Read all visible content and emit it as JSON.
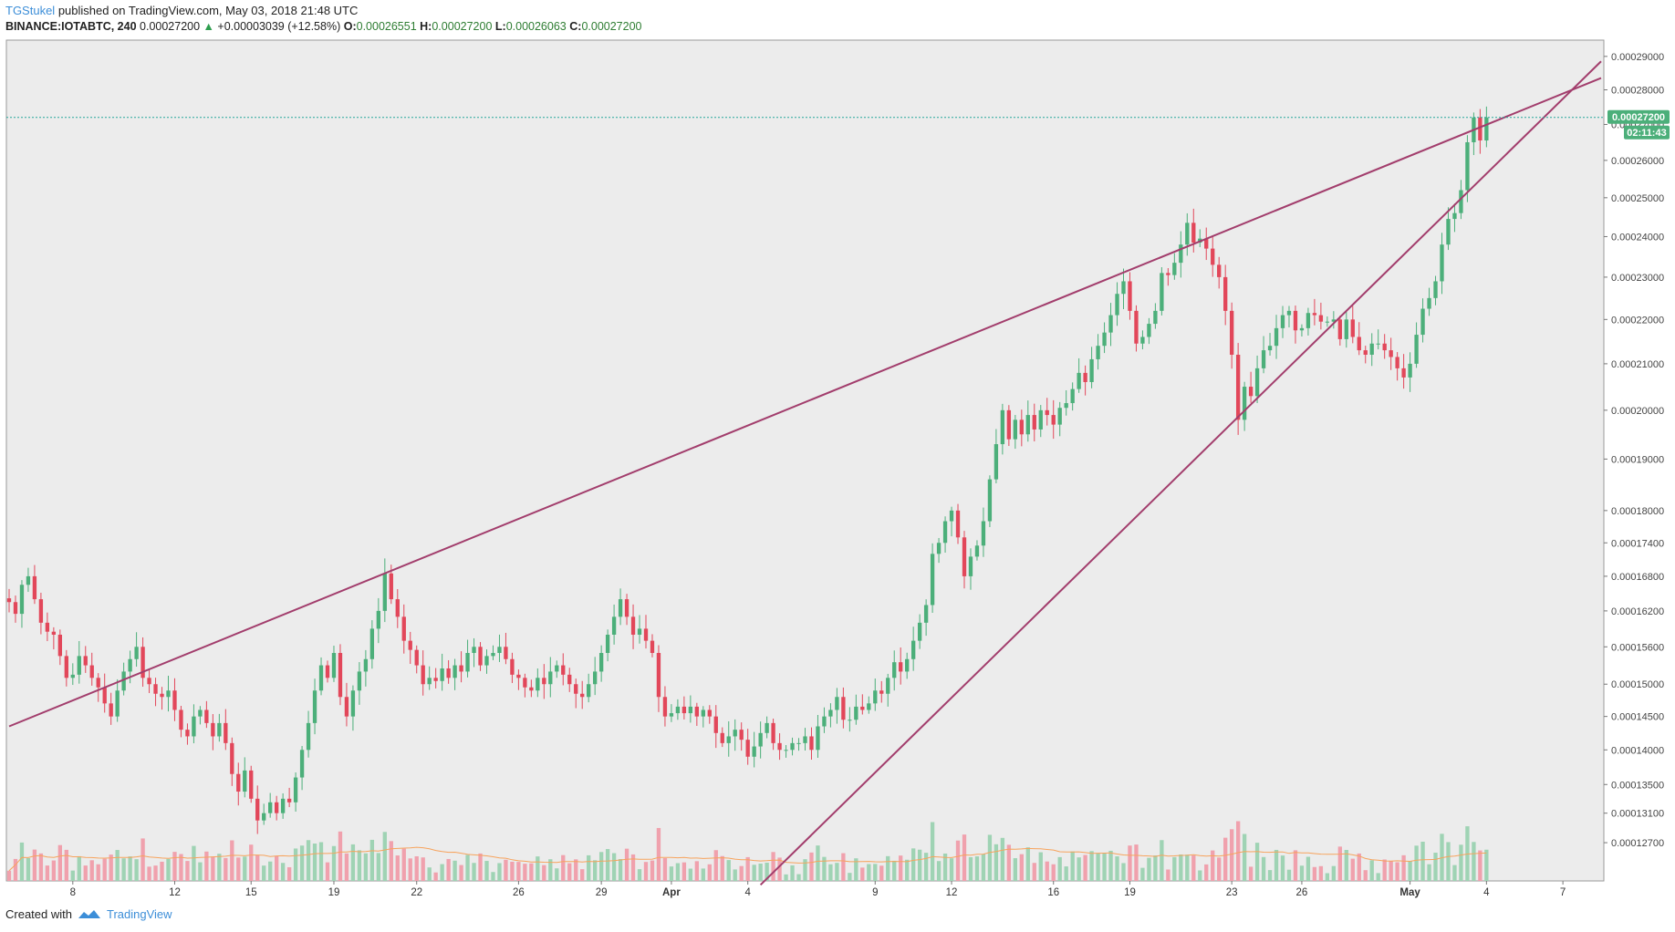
{
  "header": {
    "author": "TGStukel",
    "published": "published on TradingView.com, May 03, 2018 21:48 UTC"
  },
  "ohlc": {
    "symbol": "BINANCE:IOTABTC, 240",
    "last": "0.00027200",
    "change_arrow": "▲",
    "change": "+0.00003039 (+12.58%)",
    "o_label": "O:",
    "o": "0.00026551",
    "h_label": "H:",
    "h": "0.00027200",
    "l_label": "L:",
    "l": "0.00026063",
    "c_label": "C:",
    "c": "0.00027200"
  },
  "price_label": {
    "value": "0.00027200",
    "countdown": "02:11:43"
  },
  "footer": {
    "created_with": "Created with",
    "brand": "TradingView"
  },
  "colors": {
    "up": "#4caf7a",
    "down": "#e2475a",
    "trendline": "#a23d6c",
    "volume_up": "#9fd3b4",
    "volume_down": "#f0a1ad",
    "volume_ma": "#f7a35c",
    "price_line": "#26a69a",
    "background": "#ececec"
  },
  "chart_data": {
    "type": "candlestick",
    "y_ticks": [
      "0.00029000",
      "0.00028000",
      "0.00027000",
      "0.00026000",
      "0.00025000",
      "0.00024000",
      "0.00023000",
      "0.00022000",
      "0.00021000",
      "0.00020000",
      "0.00019000",
      "0.00018000",
      "0.00017400",
      "0.00016800",
      "0.00016200",
      "0.00015600",
      "0.00015000",
      "0.00014500",
      "0.00014000",
      "0.00013500",
      "0.00013100",
      "0.00012700"
    ],
    "x_ticks": [
      {
        "label": "8",
        "bold": false
      },
      {
        "label": "12",
        "bold": false
      },
      {
        "label": "15",
        "bold": false
      },
      {
        "label": "19",
        "bold": false
      },
      {
        "label": "22",
        "bold": false
      },
      {
        "label": "26",
        "bold": false
      },
      {
        "label": "29",
        "bold": false
      },
      {
        "label": "Apr",
        "bold": true
      },
      {
        "label": "4",
        "bold": false
      },
      {
        "label": "9",
        "bold": false
      },
      {
        "label": "12",
        "bold": false
      },
      {
        "label": "16",
        "bold": false
      },
      {
        "label": "19",
        "bold": false
      },
      {
        "label": "23",
        "bold": false
      },
      {
        "label": "26",
        "bold": false
      },
      {
        "label": "May",
        "bold": true
      },
      {
        "label": "4",
        "bold": false
      },
      {
        "label": "7",
        "bold": false
      }
    ],
    "x_tick_index": [
      10,
      26,
      38,
      51,
      64,
      80,
      93,
      104,
      116,
      136,
      148,
      164,
      176,
      192,
      203,
      220,
      232,
      244
    ],
    "x_range": [
      0,
      250
    ],
    "log_scale": true,
    "ylim": [
      0.000122,
      0.000295
    ],
    "trendlines": [
      {
        "name": "upper",
        "from": {
          "i": 0,
          "p": 0.0001435
        },
        "to": {
          "i": 250,
          "p": 0.0002835
        }
      },
      {
        "name": "lower",
        "from": {
          "i": 118,
          "p": 0.0001215
        },
        "to": {
          "i": 250,
          "p": 0.0002885
        }
      }
    ],
    "closes": [
      0.0001635,
      0.0001615,
      0.0001665,
      0.000168,
      0.000164,
      0.00016,
      0.0001585,
      0.000158,
      0.0001545,
      0.000151,
      0.0001515,
      0.0001545,
      0.000153,
      0.000151,
      0.0001495,
      0.000147,
      0.000145,
      0.000149,
      0.000152,
      0.000154,
      0.000156,
      0.000151,
      0.00015,
      0.0001485,
      0.000148,
      0.000149,
      0.000146,
      0.000143,
      0.000142,
      0.000145,
      0.000146,
      0.000144,
      0.000142,
      0.000144,
      0.000141,
      0.0001365,
      0.000134,
      0.000137,
      0.000133,
      0.00013,
      0.000131,
      0.0001325,
      0.000131,
      0.000133,
      0.0001325,
      0.000136,
      0.00014,
      0.000144,
      0.000149,
      0.000153,
      0.000151,
      0.000155,
      0.000148,
      0.000145,
      0.000149,
      0.000152,
      0.000154,
      0.000159,
      0.000162,
      0.0001685,
      0.000164,
      0.000161,
      0.000157,
      0.0001555,
      0.000153,
      0.00015,
      0.000151,
      0.0001505,
      0.0001525,
      0.000151,
      0.000153,
      0.000152,
      0.000155,
      0.000156,
      0.000153,
      0.0001545,
      0.000155,
      0.000156,
      0.000154,
      0.0001515,
      0.000151,
      0.0001495,
      0.000149,
      0.000151,
      0.00015,
      0.000152,
      0.000153,
      0.0001515,
      0.00015,
      0.0001485,
      0.000148,
      0.00015,
      0.000152,
      0.000155,
      0.000158,
      0.000161,
      0.000164,
      0.000161,
      0.000158,
      0.000159,
      0.000157,
      0.000155,
      0.000148,
      0.000145,
      0.0001455,
      0.0001465,
      0.0001455,
      0.0001465,
      0.000145,
      0.000146,
      0.000145,
      0.0001425,
      0.000141,
      0.000142,
      0.000143,
      0.0001415,
      0.000139,
      0.0001405,
      0.0001425,
      0.000144,
      0.000141,
      0.00014,
      0.00014,
      0.000141,
      0.000141,
      0.000142,
      0.00014,
      0.0001435,
      0.000145,
      0.000146,
      0.000148,
      0.0001445,
      0.0001445,
      0.0001465,
      0.000146,
      0.000147,
      0.000149,
      0.0001485,
      0.000151,
      0.0001535,
      0.000152,
      0.000154,
      0.000157,
      0.00016,
      0.000163,
      0.000172,
      0.000174,
      0.000178,
      0.00018,
      0.000175,
      0.000168,
      0.0001715,
      0.0001735,
      0.000178,
      0.000186,
      0.000193,
      0.0002,
      0.000194,
      0.000198,
      0.000195,
      0.000199,
      0.000196,
      0.0002,
      0.000199,
      0.000197,
      0.0002005,
      0.0002015,
      0.0002045,
      0.000208,
      0.000206,
      0.000211,
      0.000214,
      0.000217,
      0.000221,
      0.000226,
      0.000229,
      0.000222,
      0.0002145,
      0.000216,
      0.000219,
      0.000222,
      0.000231,
      0.0002305,
      0.0002335,
      0.000238,
      0.0002435,
      0.0002385,
      0.0002395,
      0.000237,
      0.000233,
      0.00023,
      0.000222,
      0.000212,
      0.000198,
      0.000205,
      0.000203,
      0.000209,
      0.000213,
      0.000214,
      0.000218,
      0.000221,
      0.000222,
      0.0002175,
      0.000218,
      0.0002215,
      0.000221,
      0.0002195,
      0.0002195,
      0.00022,
      0.0002155,
      0.00022,
      0.000216,
      0.000213,
      0.000212,
      0.0002145,
      0.0002145,
      0.000213,
      0.0002115,
      0.000209,
      0.000207,
      0.00021,
      0.0002165,
      0.0002225,
      0.000225,
      0.000229,
      0.000238,
      0.0002445,
      0.000246,
      0.000252,
      0.000265,
      0.000272,
      0.0002655,
      0.000272
    ]
  }
}
